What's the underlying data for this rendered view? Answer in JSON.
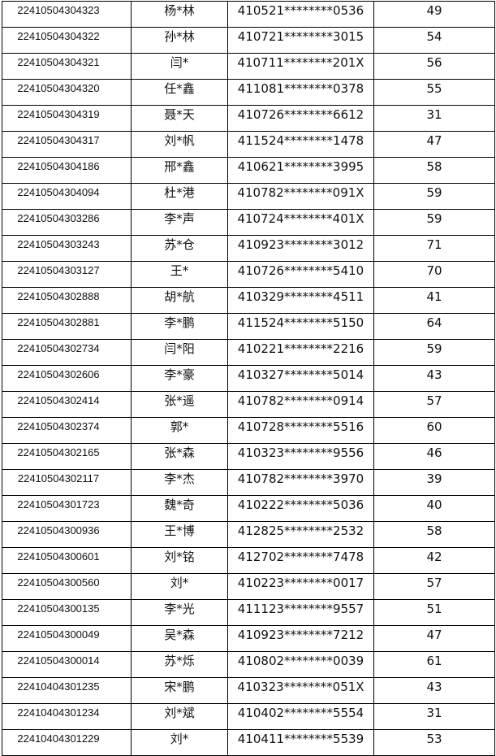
{
  "rows": [
    [
      "22410504304323",
      "杨*林",
      "410521********0536",
      "49"
    ],
    [
      "22410504304322",
      "孙*林",
      "410721********3015",
      "54"
    ],
    [
      "22410504304321",
      "闫*",
      "410711********201X",
      "56"
    ],
    [
      "22410504304320",
      "任*鑫",
      "411081********0378",
      "55"
    ],
    [
      "22410504304319",
      "聂*天",
      "410726********6612",
      "31"
    ],
    [
      "22410504304317",
      "刘*帆",
      "411524********1478",
      "47"
    ],
    [
      "22410504304186",
      "邢*鑫",
      "410621********3995",
      "58"
    ],
    [
      "22410504304094",
      "杜*港",
      "410782********091X",
      "59"
    ],
    [
      "22410504303286",
      "李*声",
      "410724********401X",
      "59"
    ],
    [
      "22410504303243",
      "苏*仓",
      "410923********3012",
      "71"
    ],
    [
      "22410504303127",
      "王*",
      "410726********5410",
      "70"
    ],
    [
      "22410504302888",
      "胡*航",
      "410329********4511",
      "41"
    ],
    [
      "22410504302881",
      "李*鹏",
      "411524********5150",
      "64"
    ],
    [
      "22410504302734",
      "闫*阳",
      "410221********2216",
      "59"
    ],
    [
      "22410504302606",
      "李*豪",
      "410327********5014",
      "43"
    ],
    [
      "22410504302414",
      "张*遥",
      "410782********0914",
      "57"
    ],
    [
      "22410504302374",
      "郭*",
      "410728********5516",
      "60"
    ],
    [
      "22410504302165",
      "张*森",
      "410323********9556",
      "46"
    ],
    [
      "22410504302117",
      "李*杰",
      "410782********3970",
      "39"
    ],
    [
      "22410504301723",
      "魏*奇",
      "410222********5036",
      "40"
    ],
    [
      "22410504300936",
      "王*博",
      "412825********2532",
      "58"
    ],
    [
      "22410504300601",
      "刘*铭",
      "412702********7478",
      "42"
    ],
    [
      "22410504300560",
      "刘*",
      "410223********0017",
      "57"
    ],
    [
      "22410504300135",
      "李*光",
      "411123********9557",
      "51"
    ],
    [
      "22410504300049",
      "吴*森",
      "410923********7212",
      "47"
    ],
    [
      "22410504300014",
      "苏*烁",
      "410802********0039",
      "61"
    ],
    [
      "22410404301235",
      "宋*鹏",
      "410323********051X",
      "43"
    ],
    [
      "22410404301234",
      "刘*斌",
      "410402********5554",
      "31"
    ],
    [
      "22410404301229",
      "刘*",
      "410411********5539",
      "53"
    ]
  ]
}
